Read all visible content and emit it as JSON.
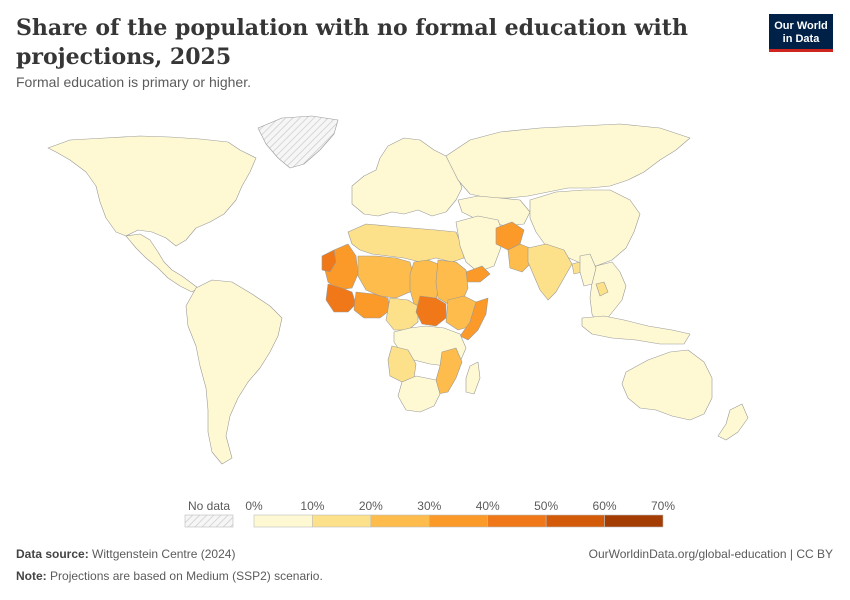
{
  "header": {
    "title": "Share of the population with no formal education with projections, 2025",
    "subtitle": "Formal education is primary or higher.",
    "logo_line1": "Our World",
    "logo_line2": "in Data"
  },
  "legend": {
    "no_data_label": "No data",
    "bins": [
      {
        "from": 0,
        "to": 10,
        "color": "#fef9d2"
      },
      {
        "from": 10,
        "to": 20,
        "color": "#fde18a"
      },
      {
        "from": 20,
        "to": 30,
        "color": "#fdbc4b"
      },
      {
        "from": 30,
        "to": 40,
        "color": "#fb9a29"
      },
      {
        "from": 40,
        "to": 50,
        "color": "#f07818"
      },
      {
        "from": 50,
        "to": 60,
        "color": "#d35a08"
      },
      {
        "from": 60,
        "to": 70,
        "color": "#a33d04"
      }
    ],
    "tick_labels": [
      "0%",
      "10%",
      "20%",
      "30%",
      "40%",
      "50%",
      "60%",
      "70%"
    ]
  },
  "map_data": {
    "value_unit": "%",
    "regions": [
      {
        "name": "North America",
        "band": 0
      },
      {
        "name": "Greenland",
        "band": "no-data"
      },
      {
        "name": "Central America",
        "band": 0
      },
      {
        "name": "South America",
        "band": 0
      },
      {
        "name": "Europe",
        "band": 0
      },
      {
        "name": "Russia",
        "band": 0
      },
      {
        "name": "Central Asia",
        "band": 0
      },
      {
        "name": "China",
        "band": 0
      },
      {
        "name": "Southeast Asia",
        "band": 0
      },
      {
        "name": "Australia",
        "band": 0
      },
      {
        "name": "New Zealand",
        "band": 0
      },
      {
        "name": "North Africa",
        "band": 1
      },
      {
        "name": "Mauritania",
        "band": 3
      },
      {
        "name": "Western Sahara",
        "band": 4
      },
      {
        "name": "Mali / Niger",
        "band": 2
      },
      {
        "name": "Chad",
        "band": 2
      },
      {
        "name": "Sudan",
        "band": 2
      },
      {
        "name": "Senegal / Guinea",
        "band": 4
      },
      {
        "name": "Burkina Faso",
        "band": 3
      },
      {
        "name": "Nigeria",
        "band": 1
      },
      {
        "name": "South Sudan",
        "band": 4
      },
      {
        "name": "Ethiopia",
        "band": 2
      },
      {
        "name": "Somalia",
        "band": 3
      },
      {
        "name": "Central Africa",
        "band": 0
      },
      {
        "name": "Angola",
        "band": 1
      },
      {
        "name": "Mozambique",
        "band": 2
      },
      {
        "name": "Southern Africa",
        "band": 0
      },
      {
        "name": "Madagascar",
        "band": 0
      },
      {
        "name": "Saudi Arabia / Middle East",
        "band": 0
      },
      {
        "name": "Yemen",
        "band": 3
      },
      {
        "name": "Afghanistan",
        "band": 3
      },
      {
        "name": "Pakistan",
        "band": 2
      },
      {
        "name": "India",
        "band": 1
      },
      {
        "name": "Bangladesh",
        "band": 1
      },
      {
        "name": "Myanmar",
        "band": 0
      },
      {
        "name": "Cambodia",
        "band": 1
      },
      {
        "name": "Indonesia",
        "band": 0
      }
    ]
  },
  "footer": {
    "source_label": "Data source:",
    "source_value": "Wittgenstein Centre (2024)",
    "url": "OurWorldinData.org/global-education | CC BY",
    "note_label": "Note:",
    "note_value": "Projections are based on Medium (SSP2) scenario."
  }
}
